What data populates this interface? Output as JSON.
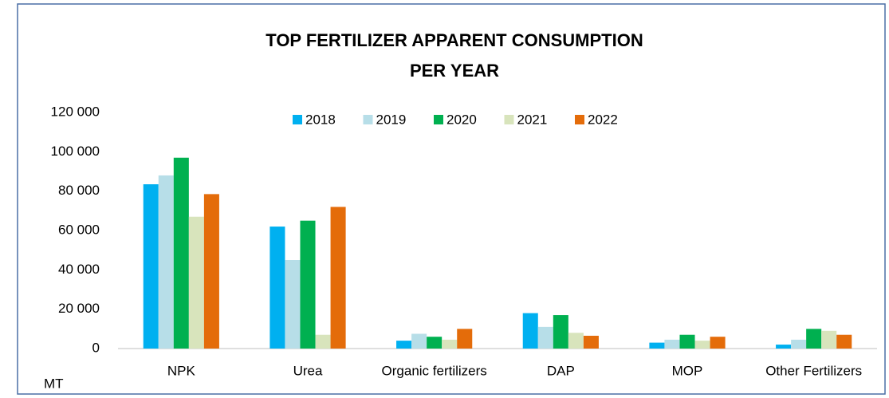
{
  "chart_data": {
    "type": "bar",
    "title": [
      "TOP FERTILIZER APPARENT CONSUMPTION",
      "PER YEAR"
    ],
    "y_label": "MT",
    "categories": [
      "NPK",
      "Urea",
      "Organic fertilizers",
      "DAP",
      "MOP",
      "Other Fertilizers"
    ],
    "series": [
      {
        "name": "2018",
        "color": "#00b0f0",
        "values": [
          83500,
          62000,
          4000,
          18000,
          3000,
          2000
        ]
      },
      {
        "name": "2019",
        "color": "#b7dee8",
        "values": [
          88000,
          45000,
          7500,
          11000,
          4500,
          4500
        ]
      },
      {
        "name": "2020",
        "color": "#00b050",
        "values": [
          97000,
          65000,
          6000,
          17000,
          7000,
          10000
        ]
      },
      {
        "name": "2021",
        "color": "#d8e4bc",
        "values": [
          67000,
          7000,
          4500,
          8000,
          4000,
          9000
        ]
      },
      {
        "name": "2022",
        "color": "#e46c0a",
        "values": [
          78500,
          72000,
          10000,
          6500,
          6000,
          7000
        ]
      }
    ],
    "ylim": [
      0,
      120000
    ],
    "yticks": [
      {
        "value": 0,
        "label": "0"
      },
      {
        "value": 20000,
        "label": "20 000"
      },
      {
        "value": 40000,
        "label": "40 000"
      },
      {
        "value": 60000,
        "label": "60 000"
      },
      {
        "value": 80000,
        "label": "80 000"
      },
      {
        "value": 100000,
        "label": "100 000"
      },
      {
        "value": 120000,
        "label": "120 000"
      }
    ],
    "grid": false,
    "legend": "top"
  }
}
